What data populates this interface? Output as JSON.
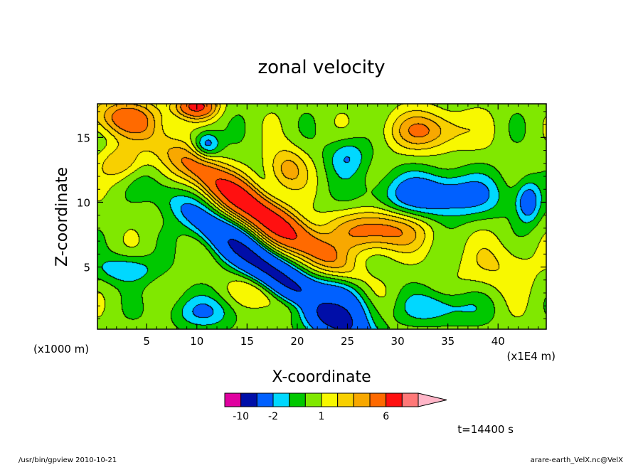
{
  "chart_data": {
    "type": "heatmap",
    "title": "zonal velocity",
    "xlabel": "X-coordinate",
    "ylabel": "Z-coordinate",
    "x_unit_left": "(x1000 m)",
    "x_unit_right": "(x1E4 m)",
    "xlim": [
      0.1,
      44.8
    ],
    "ylim": [
      0.2,
      17.6
    ],
    "x_ticks": [
      5,
      10,
      15,
      20,
      25,
      30,
      35,
      40
    ],
    "y_ticks": [
      5,
      10,
      15
    ],
    "colorbar": {
      "levels": [
        -14,
        -10,
        -6,
        -2,
        -1,
        0,
        1,
        2,
        3,
        4,
        6,
        10,
        14
      ],
      "colors": [
        "#e000a0",
        "#8a12b8",
        "#000ea8",
        "#0060ff",
        "#00d8ff",
        "#00c800",
        "#80e800",
        "#f8f800",
        "#f8d000",
        "#f8a800",
        "#ff6a00",
        "#ff1010",
        "#ff7878",
        "#ffb6c8"
      ],
      "tick_labels": [
        {
          "value": -10,
          "label": "-10"
        },
        {
          "value": -2,
          "label": "-2"
        },
        {
          "value": 1,
          "label": "1"
        },
        {
          "value": 6,
          "label": "6"
        }
      ]
    },
    "time_label": "t=14400 s",
    "footer_left": "/usr/bin/gpview   2010-10-21",
    "footer_right": "arare-earth_VelX.nc@VelX"
  }
}
